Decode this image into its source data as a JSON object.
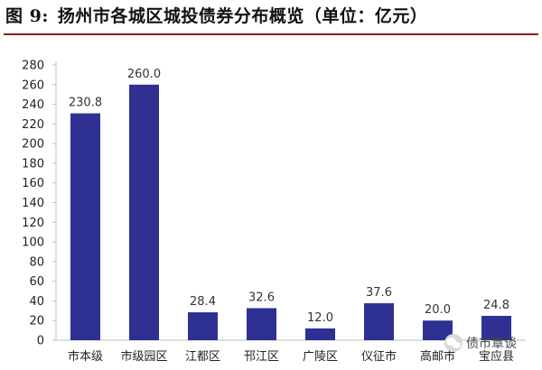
{
  "figure": {
    "label": "图 9:",
    "title": "扬州市各城区城投债券分布概览（单位：亿元）"
  },
  "watermark": {
    "text": "债市覃谈",
    "icon": "wechat-icon"
  },
  "colors": {
    "bar": "#2E3192",
    "axis": "#bfbfbf",
    "title_rule": "#8a1f1f"
  },
  "chart_data": {
    "type": "bar",
    "title": "",
    "xlabel": "",
    "ylabel": "",
    "categories": [
      "市本级",
      "市级园区",
      "江都区",
      "邗江区",
      "广陵区",
      "仪征市",
      "高邮市",
      "宝应县"
    ],
    "values": [
      230.8,
      260.0,
      28.4,
      32.6,
      12.0,
      37.6,
      20.0,
      24.8
    ],
    "value_labels": [
      "230.8",
      "260.0",
      "28.4",
      "32.6",
      "12.0",
      "37.6",
      "20.0",
      "24.8"
    ],
    "ylim": [
      0,
      280
    ],
    "yticks": [
      0,
      20,
      40,
      60,
      80,
      100,
      120,
      140,
      160,
      180,
      200,
      220,
      240,
      260,
      280
    ],
    "grid": false,
    "legend": "none"
  }
}
